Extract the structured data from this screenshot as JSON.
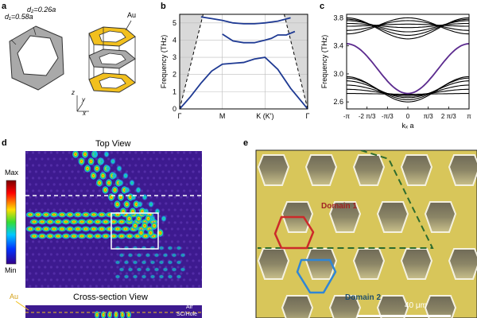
{
  "panel_labels": {
    "a": "a",
    "b": "b",
    "c": "c",
    "d": "d",
    "e": "e"
  },
  "panel_a": {
    "d1_label": "d₁=0.58a",
    "d2_label": "d₂=0.26a",
    "au_label": "Au",
    "axis_z": "z",
    "axis_y": "y",
    "axis_x": "x",
    "colors": {
      "gold": "#f2c01e",
      "gray": "#a9a9a9",
      "dark": "#303030"
    }
  },
  "panel_d": {
    "top_view_title": "Top View",
    "cross_section_title": "Cross-section View",
    "colorbar_max": "Max",
    "colorbar_min": "Min",
    "au_label": "Au",
    "air_label": "Air",
    "scale_label": "SC/Hole"
  },
  "panel_e": {
    "domain1_label": "Domain 1",
    "domain2_label": "Domain 2",
    "scale_bar_label": "40 μm",
    "colors": {
      "domain1": "#cc2a2a",
      "domain2": "#2f86d6",
      "boundary": "#2d6b2d"
    }
  },
  "chart_data": [
    {
      "id": "panel-b",
      "type": "line",
      "title": "",
      "xlabel": "",
      "ylabel": "Frequency (THz)",
      "ylim": [
        0,
        5.5
      ],
      "yticks": [
        0,
        1,
        2,
        3,
        4,
        5
      ],
      "xticks": [
        {
          "pos": 0,
          "label": "Γ"
        },
        {
          "pos": 1,
          "label": "M"
        },
        {
          "pos": 2,
          "label": "K (K')"
        },
        {
          "pos": 3,
          "label": "Γ"
        }
      ],
      "grid": true,
      "series": [
        {
          "name": "band-1",
          "x": [
            0,
            0.25,
            0.5,
            0.75,
            1.0,
            1.25,
            1.5,
            1.75,
            2.0,
            2.3,
            2.6,
            3.0
          ],
          "y": [
            0,
            0.7,
            1.5,
            2.2,
            2.6,
            2.65,
            2.7,
            2.9,
            3.0,
            2.3,
            1.2,
            0
          ]
        },
        {
          "name": "band-2",
          "x": [
            1.0,
            1.25,
            1.5,
            1.75,
            2.0,
            2.15,
            2.3,
            2.5,
            2.7
          ],
          "y": [
            4.35,
            3.95,
            3.85,
            3.85,
            4.0,
            4.1,
            4.3,
            4.3,
            4.5
          ]
        },
        {
          "name": "band-3",
          "x": [
            0.5,
            0.75,
            1.0,
            1.25,
            1.5,
            1.75,
            2.0,
            2.3,
            2.6
          ],
          "y": [
            5.35,
            5.25,
            5.15,
            5.0,
            4.95,
            4.95,
            5.0,
            5.1,
            5.3
          ]
        }
      ],
      "light_cone": {
        "x": [
          0,
          0.55,
          2.45,
          3.0
        ],
        "y": [
          0,
          5.5,
          5.5,
          0
        ]
      },
      "colors": {
        "band": "#1f3a93",
        "cone": "#d9d9d9"
      }
    },
    {
      "id": "panel-c",
      "type": "line",
      "title": "",
      "xlabel": "kₓ a",
      "ylabel": "Frequency (THz)",
      "ylim": [
        2.5,
        3.85
      ],
      "yticks": [
        2.6,
        3.0,
        3.4,
        3.8
      ],
      "xticks": [
        {
          "pos": -3.1416,
          "label": "-π"
        },
        {
          "pos": -2.0944,
          "label": "-2 π/3"
        },
        {
          "pos": -1.0472,
          "label": "-π/3"
        },
        {
          "pos": 0,
          "label": "0"
        },
        {
          "pos": 1.0472,
          "label": "π/3"
        },
        {
          "pos": 2.0944,
          "label": "2 π/3"
        },
        {
          "pos": 3.1416,
          "label": "π"
        }
      ],
      "edge_state": {
        "center": 2.72,
        "edge": 3.43,
        "color": "#5b2a8e"
      },
      "upper_bulk_bands": [
        {
          "edge": 3.8,
          "center": 3.5
        },
        {
          "edge": 3.78,
          "center": 3.55
        },
        {
          "edge": 3.76,
          "center": 3.6
        },
        {
          "edge": 3.72,
          "center": 3.66
        },
        {
          "edge": 3.68,
          "center": 3.71
        },
        {
          "edge": 3.62,
          "center": 3.76
        },
        {
          "edge": 3.57,
          "center": 3.8
        }
      ],
      "lower_bulk_bands": [
        {
          "edge": 2.96,
          "center": 2.6
        },
        {
          "edge": 2.94,
          "center": 2.63
        },
        {
          "edge": 2.9,
          "center": 2.66
        },
        {
          "edge": 2.84,
          "center": 2.68
        },
        {
          "edge": 2.78,
          "center": 2.7
        },
        {
          "edge": 2.72,
          "center": 2.71
        }
      ]
    }
  ]
}
